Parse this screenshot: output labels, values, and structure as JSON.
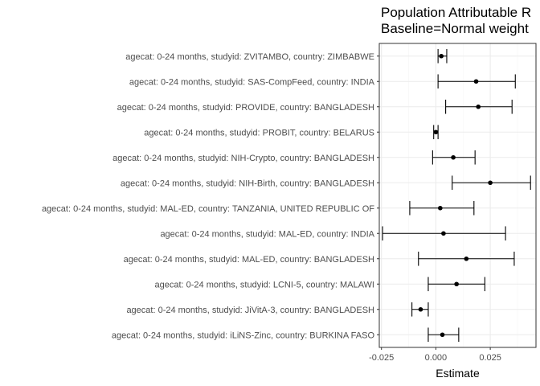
{
  "chart_data": {
    "type": "scatter",
    "subtype": "forest-plot",
    "title_lines": [
      "Population Attributable R",
      "Baseline=Normal weight"
    ],
    "xlabel": "Estimate",
    "ylabel": "",
    "xlim": [
      -0.026,
      0.046
    ],
    "xticks": [
      -0.025,
      0.0,
      0.025
    ],
    "xtick_labels": [
      "-0.025",
      "0.000",
      "0.025"
    ],
    "grid": true,
    "categories": [
      "agecat: 0-24 months, studyid: ZVITAMBO, country: ZIMBABWE",
      "agecat: 0-24 months, studyid: SAS-CompFeed, country: INDIA",
      "agecat: 0-24 months, studyid: PROVIDE, country: BANGLADESH",
      "agecat: 0-24 months, studyid: PROBIT, country: BELARUS",
      "agecat: 0-24 months, studyid: NIH-Crypto, country: BANGLADESH",
      "agecat: 0-24 months, studyid: NIH-Birth, country: BANGLADESH",
      "agecat: 0-24 months, studyid: MAL-ED, country: TANZANIA, UNITED REPUBLIC OF",
      "agecat: 0-24 months, studyid: MAL-ED, country: INDIA",
      "agecat: 0-24 months, studyid: MAL-ED, country: BANGLADESH",
      "agecat: 0-24 months, studyid: LCNI-5, country: MALAWI",
      "agecat: 0-24 months, studyid: JiVitA-3, country: BANGLADESH",
      "agecat: 0-24 months, studyid: iLiNS-Zinc, country: BURKINA FASO"
    ],
    "estimates": [
      0.0025,
      0.0185,
      0.0195,
      0.0,
      0.008,
      0.025,
      0.002,
      0.0035,
      0.014,
      0.0095,
      -0.007,
      0.003
    ],
    "ci_lower": [
      0.001,
      0.001,
      0.0045,
      -0.001,
      -0.0015,
      0.0075,
      -0.012,
      -0.0245,
      -0.008,
      -0.0035,
      -0.011,
      -0.0035
    ],
    "ci_upper": [
      0.005,
      0.0365,
      0.035,
      0.001,
      0.018,
      0.0435,
      0.0175,
      0.032,
      0.036,
      0.0225,
      -0.0035,
      0.0105
    ],
    "colors": {
      "panel_bg": "#ffffff",
      "grid_major": "#ebebeb",
      "grid_minor": "#f5f5f5",
      "border": "#333333",
      "mark": "#000000",
      "axis_text": "#4d4d4d"
    }
  }
}
